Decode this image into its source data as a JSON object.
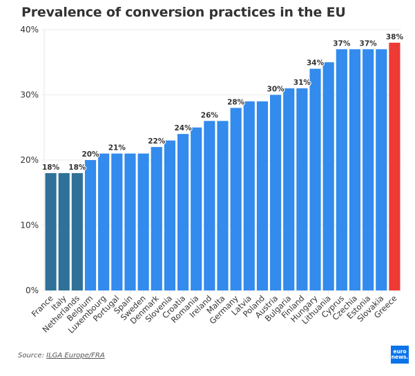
{
  "chart_data": {
    "type": "bar",
    "title": "Prevalence of conversion practices in the EU",
    "xlabel": "",
    "ylabel": "",
    "ylim": [
      0,
      40
    ],
    "yticks": [
      0,
      10,
      20,
      30,
      40
    ],
    "ytick_labels": [
      "0%",
      "10%",
      "20%",
      "30%",
      "40%"
    ],
    "grid": true,
    "categories": [
      "France",
      "Italy",
      "Netherlands",
      "Belgium",
      "Luxembourg",
      "Portugal",
      "Spain",
      "Sweden",
      "Denmark",
      "Slovenia",
      "Croatia",
      "Romania",
      "Ireland",
      "Malta",
      "Germany",
      "Latvia",
      "Poland",
      "Austria",
      "Bulgaria",
      "Finland",
      "Hungary",
      "Lithuania",
      "Cyprus",
      "Czechia",
      "Estonia",
      "Slovakia",
      "Greece"
    ],
    "values": [
      18,
      18,
      18,
      20,
      21,
      21,
      21,
      21,
      22,
      23,
      24,
      25,
      26,
      26,
      28,
      29,
      29,
      30,
      31,
      31,
      34,
      35,
      37,
      37,
      37,
      37,
      38
    ],
    "bar_groups": [
      "low",
      "low",
      "low",
      "mid",
      "mid",
      "mid",
      "mid",
      "mid",
      "mid",
      "mid",
      "mid",
      "mid",
      "mid",
      "mid",
      "mid",
      "mid",
      "mid",
      "mid",
      "mid",
      "mid",
      "mid",
      "mid",
      "mid",
      "mid",
      "mid",
      "mid",
      "high"
    ],
    "colors": {
      "low": "#2f7198",
      "mid": "#328bed",
      "high": "#ee3a34"
    },
    "data_labels": [
      {
        "category": "France",
        "text": "18%"
      },
      {
        "category": "Netherlands",
        "text": "18%"
      },
      {
        "category": "Belgium",
        "text": "20%"
      },
      {
        "category": "Portugal",
        "text": "21%"
      },
      {
        "category": "Denmark",
        "text": "22%"
      },
      {
        "category": "Croatia",
        "text": "24%"
      },
      {
        "category": "Ireland",
        "text": "26%"
      },
      {
        "category": "Germany",
        "text": "28%"
      },
      {
        "category": "Austria",
        "text": "30%"
      },
      {
        "category": "Finland",
        "text": "31%"
      },
      {
        "category": "Hungary",
        "text": "34%"
      },
      {
        "category": "Cyprus",
        "text": "37%"
      },
      {
        "category": "Estonia",
        "text": "37%"
      },
      {
        "category": "Greece",
        "text": "38%"
      }
    ],
    "value_suffix": "%"
  },
  "footer": {
    "source_prefix": "Source: ",
    "source_link": "ILGA Europe/FRA",
    "logo_line1": "euro",
    "logo_line2": "news."
  }
}
